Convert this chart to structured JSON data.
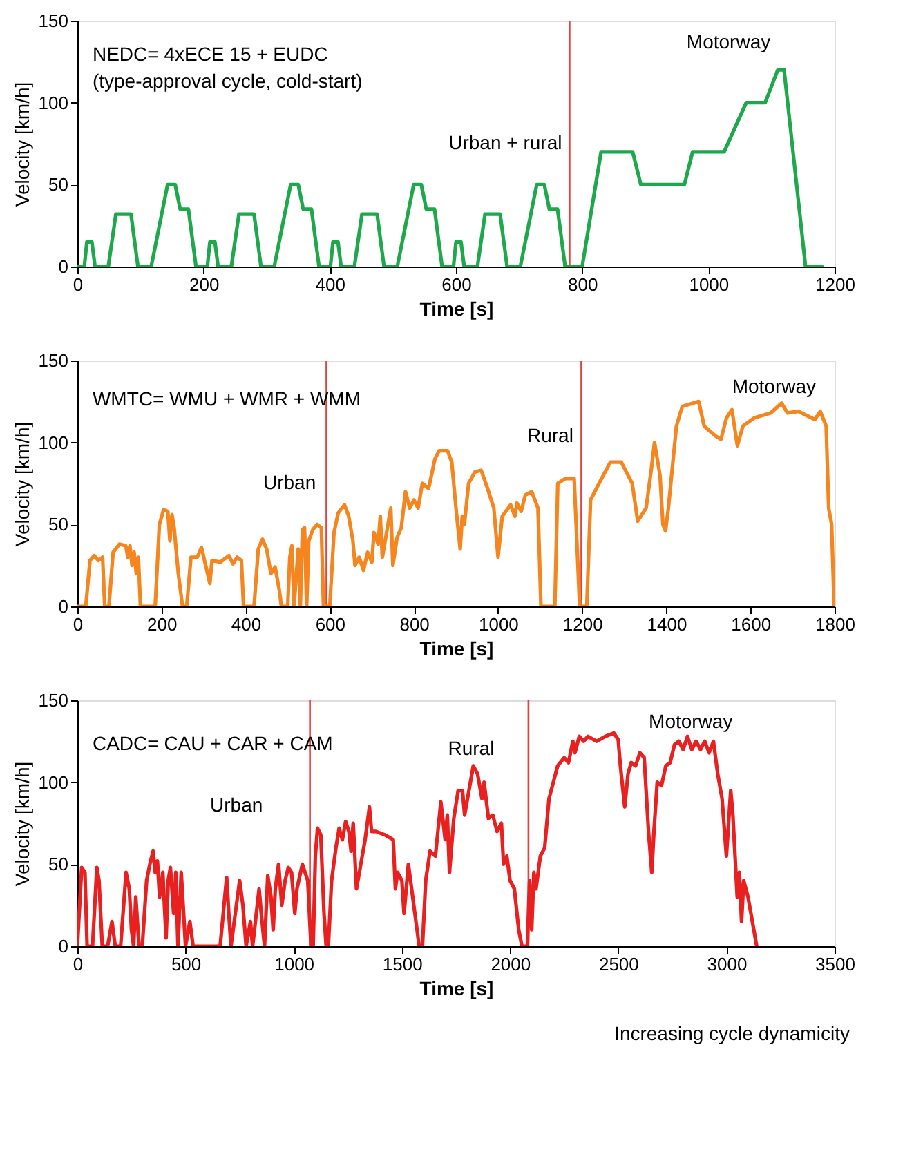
{
  "chart_data": [
    {
      "type": "line",
      "xlabel": "Time [s]",
      "ylabel": "Velocity [km/h]",
      "xlim": [
        0,
        1200
      ],
      "xticks": [
        0,
        200,
        400,
        600,
        800,
        1000,
        1200
      ],
      "ylim": [
        0,
        150
      ],
      "yticks": [
        0,
        50,
        100,
        150
      ],
      "grid": false,
      "series": [
        {
          "color": "#1ea84c",
          "x": [
            0,
            11,
            15,
            23,
            28,
            49,
            61,
            85,
            96,
            117,
            143,
            155,
            163,
            176,
            188,
            195,
            206,
            210,
            218,
            223,
            244,
            256,
            280,
            291,
            312,
            338,
            350,
            358,
            371,
            383,
            390,
            401,
            405,
            413,
            418,
            439,
            451,
            475,
            486,
            507,
            533,
            545,
            553,
            566,
            578,
            585,
            596,
            600,
            608,
            613,
            634,
            646,
            670,
            681,
            702,
            728,
            740,
            748,
            761,
            773,
            780,
            800,
            830,
            880,
            893,
            962,
            975,
            1025,
            1060,
            1090,
            1110,
            1120,
            1154,
            1180
          ],
          "values": [
            0,
            0,
            15,
            15,
            0,
            0,
            32,
            32,
            0,
            0,
            50,
            50,
            35,
            35,
            0,
            0,
            0,
            15,
            15,
            0,
            0,
            32,
            32,
            0,
            0,
            50,
            50,
            35,
            35,
            0,
            0,
            0,
            15,
            15,
            0,
            0,
            32,
            32,
            0,
            0,
            50,
            50,
            35,
            35,
            0,
            0,
            0,
            15,
            15,
            0,
            0,
            32,
            32,
            0,
            0,
            50,
            50,
            35,
            35,
            0,
            0,
            0,
            70,
            70,
            50,
            50,
            70,
            70,
            100,
            100,
            120,
            120,
            0,
            0
          ]
        }
      ],
      "ref_lines": [
        {
          "axis": "x",
          "value": 780,
          "color": "#e8403c"
        }
      ],
      "annotations": [
        "NEDC= 4xECE 15 + EUDC",
        "(type-approval cycle, cold-start)",
        "Urban + rural",
        "Motorway"
      ]
    },
    {
      "type": "line",
      "xlabel": "Time [s]",
      "ylabel": "Velocity [km/h]",
      "xlim": [
        0,
        1800
      ],
      "xticks": [
        0,
        200,
        400,
        600,
        800,
        1000,
        1200,
        1400,
        1600,
        1800
      ],
      "ylim": [
        0,
        150
      ],
      "yticks": [
        0,
        50,
        100,
        150
      ],
      "grid": false,
      "series": [
        {
          "color": "#f5861f",
          "x": [
            0,
            20,
            30,
            40,
            50,
            60,
            65,
            75,
            85,
            100,
            115,
            120,
            125,
            130,
            135,
            140,
            145,
            150,
            185,
            195,
            205,
            215,
            220,
            225,
            230,
            240,
            250,
            260,
            270,
            285,
            295,
            305,
            315,
            320,
            340,
            360,
            370,
            380,
            390,
            395,
            420,
            430,
            440,
            450,
            460,
            470,
            480,
            485,
            500,
            505,
            510,
            515,
            525,
            530,
            535,
            540,
            545,
            550,
            560,
            570,
            580,
            585,
            600,
            610,
            620,
            635,
            645,
            655,
            660,
            670,
            680,
            690,
            700,
            705,
            715,
            720,
            725,
            735,
            745,
            750,
            760,
            770,
            780,
            790,
            800,
            810,
            820,
            835,
            850,
            860,
            880,
            890,
            900,
            910,
            915,
            920,
            930,
            945,
            960,
            975,
            990,
            1000,
            1010,
            1030,
            1040,
            1045,
            1055,
            1065,
            1080,
            1095,
            1102,
            1135,
            1142,
            1160,
            1181,
            1194,
            1211,
            1220,
            1240,
            1267,
            1293,
            1319,
            1332,
            1352,
            1365,
            1372,
            1385,
            1392,
            1398,
            1405,
            1424,
            1438,
            1477,
            1490,
            1517,
            1530,
            1543,
            1556,
            1569,
            1582,
            1609,
            1648,
            1674,
            1688,
            1714,
            1753,
            1766,
            1780,
            1786,
            1793,
            1799
          ],
          "values": [
            0,
            0,
            28,
            31,
            28,
            30,
            0,
            0,
            33,
            38,
            37,
            30,
            37,
            25,
            33,
            20,
            30,
            0,
            0,
            50,
            59,
            58,
            40,
            56,
            48,
            20,
            0,
            0,
            30,
            30,
            36,
            25,
            14,
            28,
            27,
            31,
            26,
            30,
            28,
            0,
            0,
            35,
            41,
            35,
            20,
            24,
            10,
            0,
            0,
            30,
            37,
            0,
            35,
            0,
            47,
            48,
            0,
            40,
            47,
            50,
            48,
            0,
            0,
            45,
            57,
            62,
            55,
            40,
            25,
            30,
            22,
            33,
            27,
            45,
            38,
            55,
            30,
            45,
            60,
            25,
            42,
            48,
            70,
            60,
            65,
            60,
            75,
            72,
            90,
            95,
            95,
            88,
            60,
            35,
            55,
            50,
            75,
            82,
            83,
            72,
            60,
            30,
            55,
            62,
            55,
            63,
            58,
            68,
            70,
            60,
            0,
            0,
            75,
            78,
            78,
            0,
            0,
            65,
            75,
            88,
            88,
            75,
            52,
            60,
            85,
            100,
            80,
            50,
            46,
            60,
            110,
            122,
            125,
            110,
            104,
            102,
            115,
            120,
            98,
            110,
            115,
            118,
            124,
            118,
            119,
            114,
            119,
            110,
            60,
            50,
            0
          ]
        }
      ],
      "ref_lines": [
        {
          "axis": "x",
          "value": 592,
          "color": "#e8403c"
        },
        {
          "axis": "x",
          "value": 1198,
          "color": "#e8403c"
        }
      ],
      "annotations": [
        "WMTC= WMU + WMR + WMM",
        "Urban",
        "Rural",
        "Motorway"
      ]
    },
    {
      "type": "line",
      "xlabel": "Time [s]",
      "ylabel": "Velocity [km/h]",
      "xlim": [
        0,
        3500
      ],
      "xticks": [
        0,
        500,
        1000,
        1500,
        2000,
        2500,
        3000,
        3500
      ],
      "ylim": [
        0,
        150
      ],
      "yticks": [
        0,
        50,
        100,
        150
      ],
      "grid": false,
      "series": [
        {
          "color": "#e8201f",
          "x": [
            0,
            20,
            35,
            45,
            70,
            90,
            100,
            115,
            140,
            160,
            175,
            200,
            225,
            240,
            250,
            260,
            270,
            285,
            300,
            320,
            335,
            350,
            360,
            370,
            380,
            395,
            410,
            420,
            430,
            445,
            455,
            465,
            480,
            500,
            520,
            535,
            560,
            660,
            690,
            700,
            710,
            740,
            750,
            765,
            780,
            800,
            810,
            840,
            850,
            865,
            880,
            895,
            905,
            915,
            930,
            945,
            960,
            975,
            990,
            1005,
            1015,
            1040,
            1065,
            1080,
            1090,
            1100,
            1110,
            1125,
            1140,
            1150,
            1160,
            1175,
            1195,
            1210,
            1225,
            1240,
            1255,
            1265,
            1275,
            1290,
            1310,
            1330,
            1350,
            1360,
            1380,
            1420,
            1460,
            1470,
            1480,
            1500,
            1510,
            1530,
            1550,
            1580,
            1595,
            1610,
            1630,
            1655,
            1680,
            1700,
            1710,
            1720,
            1740,
            1760,
            1780,
            1790,
            1810,
            1830,
            1850,
            1870,
            1880,
            1900,
            1920,
            1940,
            1960,
            1970,
            1985,
            2000,
            2020,
            2040,
            2055,
            2080,
            2090,
            2100,
            2110,
            2120,
            2140,
            2160,
            2180,
            2200,
            2220,
            2250,
            2270,
            2290,
            2300,
            2320,
            2340,
            2360,
            2400,
            2440,
            2480,
            2500,
            2510,
            2530,
            2545,
            2560,
            2580,
            2600,
            2620,
            2640,
            2655,
            2665,
            2680,
            2700,
            2720,
            2740,
            2760,
            2780,
            2800,
            2820,
            2840,
            2860,
            2880,
            2900,
            2920,
            2940,
            2960,
            2980,
            3000,
            3020,
            3030,
            3050,
            3060,
            3070,
            3080,
            3100,
            3140
          ],
          "values": [
            0,
            48,
            45,
            0,
            0,
            48,
            40,
            0,
            0,
            15,
            0,
            0,
            45,
            35,
            10,
            0,
            30,
            0,
            0,
            40,
            50,
            58,
            45,
            52,
            30,
            45,
            5,
            40,
            48,
            20,
            45,
            0,
            45,
            0,
            15,
            0,
            0,
            0,
            42,
            20,
            0,
            30,
            40,
            25,
            0,
            15,
            0,
            35,
            20,
            0,
            43,
            30,
            10,
            35,
            50,
            25,
            40,
            48,
            45,
            20,
            35,
            50,
            40,
            0,
            0,
            55,
            72,
            68,
            20,
            0,
            0,
            40,
            60,
            72,
            65,
            76,
            70,
            58,
            75,
            35,
            50,
            65,
            85,
            70,
            70,
            68,
            65,
            35,
            45,
            40,
            20,
            50,
            30,
            0,
            0,
            40,
            58,
            55,
            88,
            65,
            80,
            45,
            78,
            95,
            95,
            80,
            95,
            110,
            105,
            90,
            100,
            78,
            80,
            70,
            75,
            50,
            55,
            40,
            35,
            10,
            0,
            0,
            40,
            10,
            45,
            35,
            55,
            60,
            90,
            100,
            110,
            115,
            112,
            125,
            118,
            128,
            125,
            128,
            125,
            128,
            130,
            126,
            110,
            85,
            105,
            112,
            110,
            118,
            115,
            70,
            45,
            70,
            100,
            98,
            110,
            112,
            123,
            125,
            120,
            128,
            120,
            125,
            120,
            125,
            118,
            125,
            105,
            90,
            55,
            95,
            80,
            30,
            45,
            15,
            40,
            30,
            0
          ]
        }
      ],
      "ref_lines": [
        {
          "axis": "x",
          "value": 1075,
          "color": "#e8403c"
        },
        {
          "axis": "x",
          "value": 2085,
          "color": "#e8403c"
        }
      ],
      "annotations": [
        "CADC= CAU + CAR + CAM",
        "Urban",
        "Rural",
        "Motorway",
        "Increasing cycle dynamicity"
      ]
    }
  ]
}
